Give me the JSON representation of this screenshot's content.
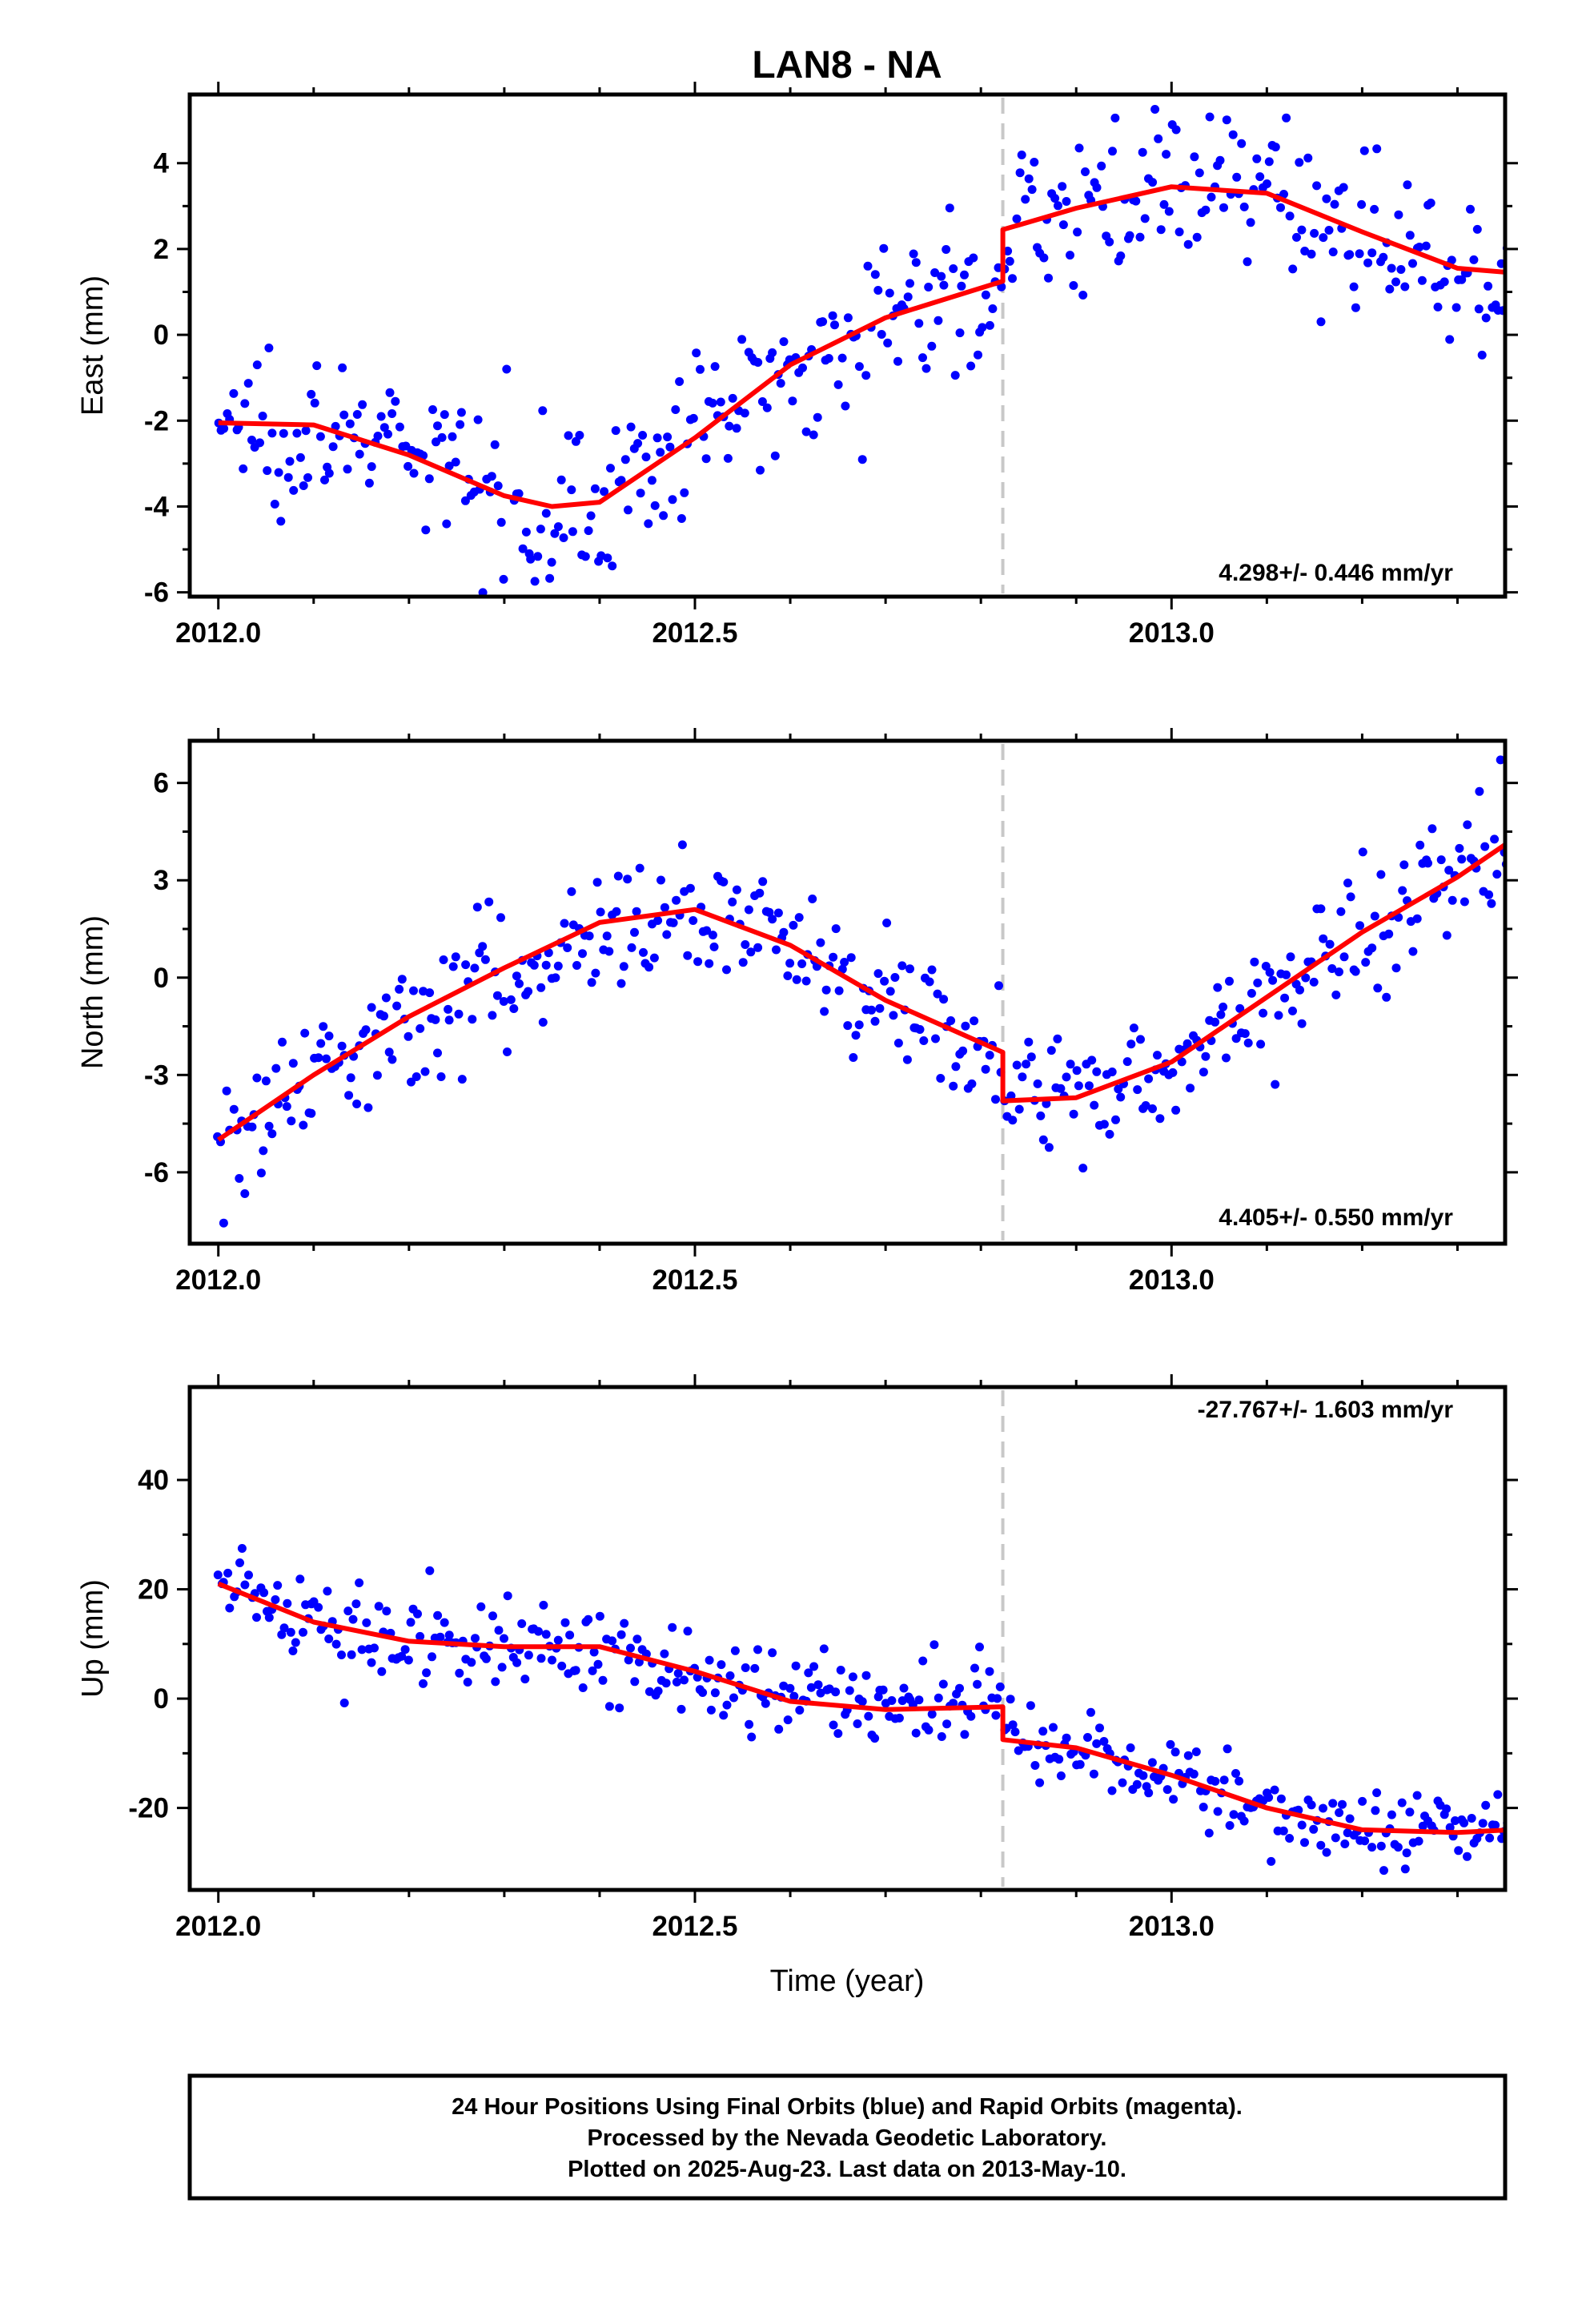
{
  "chart_data": [
    {
      "type": "scatter",
      "panel": "east",
      "title": "LAN8 - NA",
      "ylabel": "East (mm)",
      "xlim": [
        2011.97,
        2013.35
      ],
      "ylim": [
        -6.1,
        5.6
      ],
      "xticks": [
        "2012.0",
        "2012.5",
        "2013.0"
      ],
      "yticks": [
        "-6",
        "-4",
        "-2",
        "0",
        "2",
        "4"
      ],
      "rate_text": "4.298+/- 0.446 mm/yr",
      "offset_epoch": 2012.823,
      "colors": {
        "points": "#0000ff",
        "fit": "#ff0000",
        "offset": "#c8c8c8"
      },
      "series": [
        {
          "name": "24 Hour Positions",
          "kind": "points",
          "x_start": 2012.0,
          "x_end": 2013.355,
          "count": 430
        },
        {
          "name": "Model fit",
          "kind": "line",
          "x": [
            2012.0,
            2012.1,
            2012.2,
            2012.3,
            2012.35,
            2012.4,
            2012.5,
            2012.6,
            2012.7,
            2012.823,
            2012.823,
            2012.9,
            2013.0,
            2013.1,
            2013.2,
            2013.3,
            2013.355
          ],
          "y": [
            -2.05,
            -2.1,
            -2.8,
            -3.75,
            -4.0,
            -3.9,
            -2.4,
            -0.7,
            0.4,
            1.25,
            2.45,
            2.95,
            3.45,
            3.3,
            2.4,
            1.55,
            1.45
          ]
        }
      ]
    },
    {
      "type": "scatter",
      "panel": "north",
      "ylabel": "North (mm)",
      "xlim": [
        2011.97,
        2013.35
      ],
      "ylim": [
        -8.2,
        7.3
      ],
      "xticks": [
        "2012.0",
        "2012.5",
        "2013.0"
      ],
      "yticks": [
        "-6",
        "-3",
        "0",
        "3",
        "6"
      ],
      "rate_text": "4.405+/- 0.550 mm/yr",
      "offset_epoch": 2012.823,
      "colors": {
        "points": "#0000ff",
        "fit": "#ff0000",
        "offset": "#c8c8c8"
      },
      "series": [
        {
          "name": "24 Hour Positions",
          "kind": "points",
          "x_start": 2012.0,
          "x_end": 2013.355,
          "count": 430
        },
        {
          "name": "Model fit",
          "kind": "line",
          "x": [
            2012.0,
            2012.1,
            2012.2,
            2012.3,
            2012.4,
            2012.5,
            2012.6,
            2012.7,
            2012.823,
            2012.823,
            2012.9,
            2013.0,
            2013.1,
            2013.2,
            2013.3,
            2013.355
          ],
          "y": [
            -5.0,
            -3.0,
            -1.2,
            0.3,
            1.7,
            2.1,
            1.0,
            -0.7,
            -2.3,
            -3.8,
            -3.7,
            -2.6,
            -0.6,
            1.4,
            3.1,
            4.2
          ]
        }
      ]
    },
    {
      "type": "scatter",
      "panel": "up",
      "ylabel": "Up (mm)",
      "xlabel": "Time (year)",
      "xlim": [
        2011.97,
        2013.35
      ],
      "ylim": [
        -35,
        57
      ],
      "xticks": [
        "2012.0",
        "2012.5",
        "2013.0"
      ],
      "yticks": [
        "-20",
        "0",
        "20",
        "40"
      ],
      "rate_text": "-27.767+/- 1.603 mm/yr",
      "offset_epoch": 2012.823,
      "colors": {
        "points": "#0000ff",
        "fit": "#ff0000",
        "offset": "#c8c8c8"
      },
      "series": [
        {
          "name": "24 Hour Positions",
          "kind": "points",
          "x_start": 2012.0,
          "x_end": 2013.355,
          "count": 430
        },
        {
          "name": "Model fit",
          "kind": "line",
          "x": [
            2012.0,
            2012.1,
            2012.2,
            2012.3,
            2012.4,
            2012.5,
            2012.6,
            2012.7,
            2012.823,
            2012.823,
            2012.9,
            2013.0,
            2013.1,
            2013.2,
            2013.3,
            2013.355
          ],
          "y": [
            21,
            14,
            10.5,
            9.5,
            9.5,
            5,
            -0.5,
            -2,
            -1.5,
            -7.5,
            -9,
            -14,
            -20,
            -24,
            -24.5,
            -24
          ]
        }
      ]
    }
  ],
  "footer": {
    "line1": "24 Hour Positions Using Final Orbits (blue) and Rapid Orbits (magenta).",
    "line2": "Processed by the Nevada Geodetic Laboratory.",
    "line3": "Plotted on 2025-Aug-23. Last data on 2013-May-10."
  }
}
